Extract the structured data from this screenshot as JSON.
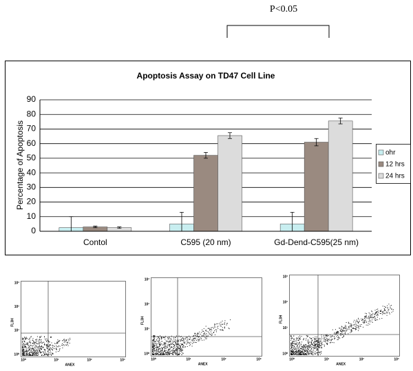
{
  "chart_data": {
    "type": "bar",
    "title": "Apoptosis Assay on TD47 Cell Line",
    "annotation": "P<0.05",
    "y_label": "Percentage of Apoptosis",
    "categories": [
      "Contol",
      "C595 (20 nm)",
      "Gd-Dend-C595(25 nm)"
    ],
    "series": [
      {
        "name": "ohr",
        "color": "#c8eef0",
        "values": [
          2.5,
          5,
          5
        ],
        "errors": [
          7.5,
          8,
          8
        ]
      },
      {
        "name": "12 hrs",
        "color": "#9a8a80",
        "values": [
          3,
          52,
          61
        ],
        "errors": [
          0.5,
          2,
          2.5
        ]
      },
      {
        "name": "24 hrs",
        "color": "#dcdcdc",
        "values": [
          2.5,
          65.5,
          75.5
        ],
        "errors": [
          0.5,
          2,
          2
        ]
      }
    ],
    "ylim": [
      0,
      90
    ],
    "yticks": [
      0,
      10,
      20,
      30,
      40,
      50,
      60,
      70,
      80,
      90
    ],
    "grid": true,
    "legend": "right"
  },
  "flow_panels": [
    {
      "x_label": "ANEX",
      "y_label": "FL3H",
      "x_ticks": [
        "10⁰",
        "10¹",
        "10²",
        "10³"
      ],
      "y_ticks": [
        "10⁰",
        "10¹",
        "10²",
        "10³"
      ]
    },
    {
      "x_label": "ANEX",
      "y_label": "FL3H",
      "x_ticks": [
        "10⁰",
        "10¹",
        "10²",
        "10³"
      ],
      "y_ticks": [
        "10⁰",
        "10¹",
        "10²",
        "10³"
      ]
    },
    {
      "x_label": "ANEX",
      "y_label": "FL3H",
      "x_ticks": [
        "10⁰",
        "10¹",
        "10²",
        "10³"
      ],
      "y_ticks": [
        "10⁰",
        "10¹",
        "10²",
        "10³"
      ]
    }
  ]
}
